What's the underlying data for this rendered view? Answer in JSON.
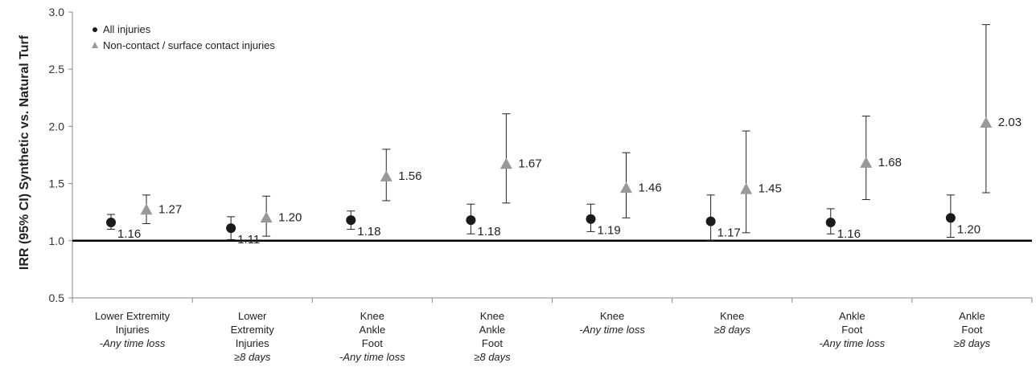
{
  "chart_data": {
    "type": "scatter",
    "ylabel": "IRR (95% CI) Synthetic vs. Natural Turf",
    "ylim": [
      0.5,
      3.0
    ],
    "yticks": [
      "0.5",
      "1.0",
      "1.5",
      "2.0",
      "2.5",
      "3.0"
    ],
    "reference_line": 1.0,
    "legend_position": "top-left",
    "colors": {
      "all": "#1a1a1a",
      "noncontact": "#999999",
      "axis": "#000000"
    },
    "categories": [
      {
        "lines": [
          "Lower Extremity",
          "Injuries"
        ],
        "italic": "-Any time loss"
      },
      {
        "lines": [
          "Lower",
          "Extremity",
          "Injuries"
        ],
        "italic": "≥8 days"
      },
      {
        "lines": [
          "Knee",
          "Ankle",
          "Foot"
        ],
        "italic": "-Any time loss"
      },
      {
        "lines": [
          "Knee",
          "Ankle",
          "Foot"
        ],
        "italic": "≥8 days"
      },
      {
        "lines": [
          "Knee"
        ],
        "italic": "-Any time loss"
      },
      {
        "lines": [
          "Knee"
        ],
        "italic": "≥8 days"
      },
      {
        "lines": [
          "Ankle",
          "Foot"
        ],
        "italic": "-Any time loss"
      },
      {
        "lines": [
          "Ankle",
          "Foot"
        ],
        "italic": "≥8 days"
      }
    ],
    "series": [
      {
        "name": "All injuries",
        "marker": "circle",
        "points": [
          {
            "value": 1.16,
            "lower": 1.1,
            "upper": 1.23,
            "label": "1.16"
          },
          {
            "value": 1.11,
            "lower": 1.01,
            "upper": 1.21,
            "label": "1.11"
          },
          {
            "value": 1.18,
            "lower": 1.1,
            "upper": 1.26,
            "label": "1.18"
          },
          {
            "value": 1.18,
            "lower": 1.06,
            "upper": 1.32,
            "label": "1.18"
          },
          {
            "value": 1.19,
            "lower": 1.08,
            "upper": 1.32,
            "label": "1.19"
          },
          {
            "value": 1.17,
            "lower": 1.0,
            "upper": 1.4,
            "label": "1.17"
          },
          {
            "value": 1.16,
            "lower": 1.06,
            "upper": 1.28,
            "label": "1.16"
          },
          {
            "value": 1.2,
            "lower": 1.03,
            "upper": 1.4,
            "label": "1.20"
          }
        ]
      },
      {
        "name": "Non-contact / surface contact injuries",
        "marker": "triangle",
        "points": [
          {
            "value": 1.27,
            "lower": 1.15,
            "upper": 1.4,
            "label": "1.27"
          },
          {
            "value": 1.2,
            "lower": 1.04,
            "upper": 1.39,
            "label": "1.20"
          },
          {
            "value": 1.56,
            "lower": 1.35,
            "upper": 1.8,
            "label": "1.56"
          },
          {
            "value": 1.67,
            "lower": 1.33,
            "upper": 2.11,
            "label": "1.67"
          },
          {
            "value": 1.46,
            "lower": 1.2,
            "upper": 1.77,
            "label": "1.46"
          },
          {
            "value": 1.45,
            "lower": 1.07,
            "upper": 1.96,
            "label": "1.45"
          },
          {
            "value": 1.68,
            "lower": 1.36,
            "upper": 2.09,
            "label": "1.68"
          },
          {
            "value": 2.03,
            "lower": 1.42,
            "upper": 2.89,
            "label": "2.03"
          }
        ]
      }
    ]
  }
}
